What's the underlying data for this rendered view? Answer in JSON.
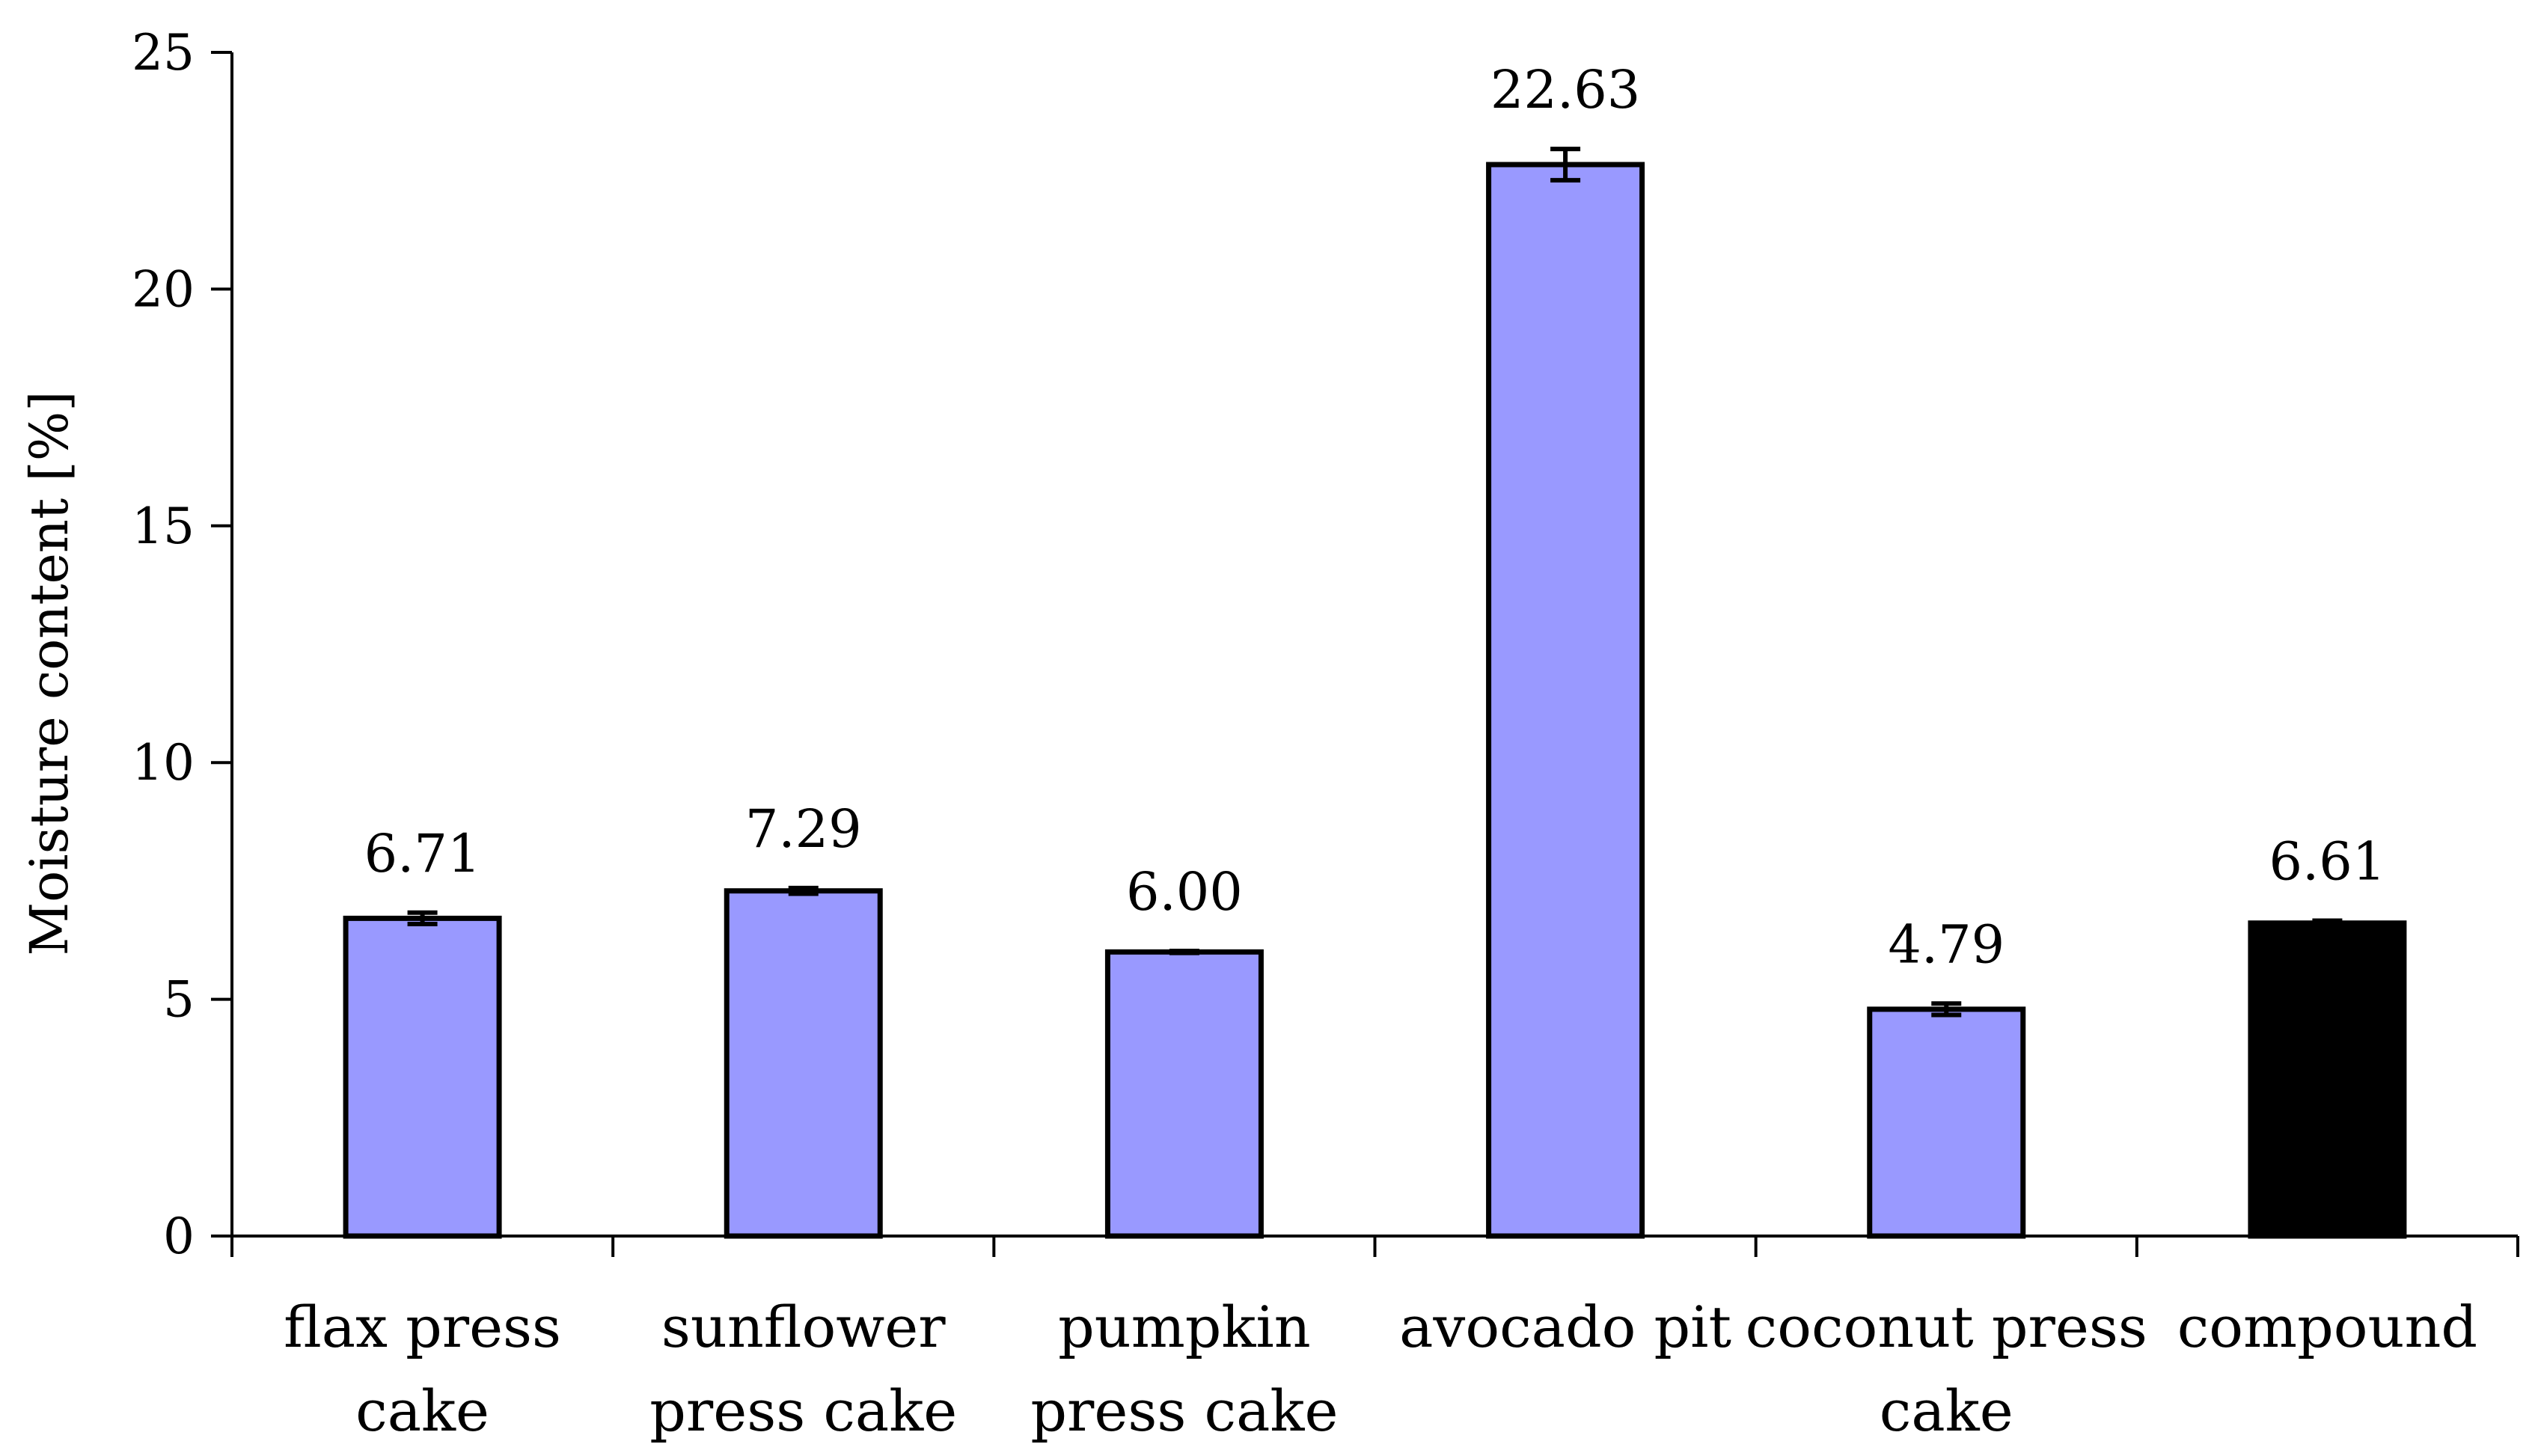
{
  "chart_data": {
    "type": "bar",
    "title": "",
    "xlabel": "",
    "ylabel": "Moisture content [%]",
    "ylim": [
      0,
      25
    ],
    "yticks": [
      0,
      5,
      10,
      15,
      20,
      25
    ],
    "categories": [
      [
        "flax press",
        "cake"
      ],
      [
        "sunflower",
        "press cake"
      ],
      [
        "pumpkin",
        "press cake"
      ],
      [
        "avocado pit"
      ],
      [
        "coconut press",
        "cake"
      ],
      [
        "compound"
      ]
    ],
    "values": [
      6.71,
      7.29,
      6.0,
      22.63,
      4.79,
      6.61
    ],
    "labels": [
      "6.71",
      "7.29",
      "6.00",
      "22.63",
      "4.79",
      "6.61"
    ],
    "errors": [
      0.12,
      0.06,
      0.02,
      0.33,
      0.12,
      0.05
    ],
    "bar_colors": [
      "#9999ff",
      "#9999ff",
      "#9999ff",
      "#9999ff",
      "#9999ff",
      "#000000"
    ],
    "bar_edge_color": "#000000",
    "grid": false
  }
}
